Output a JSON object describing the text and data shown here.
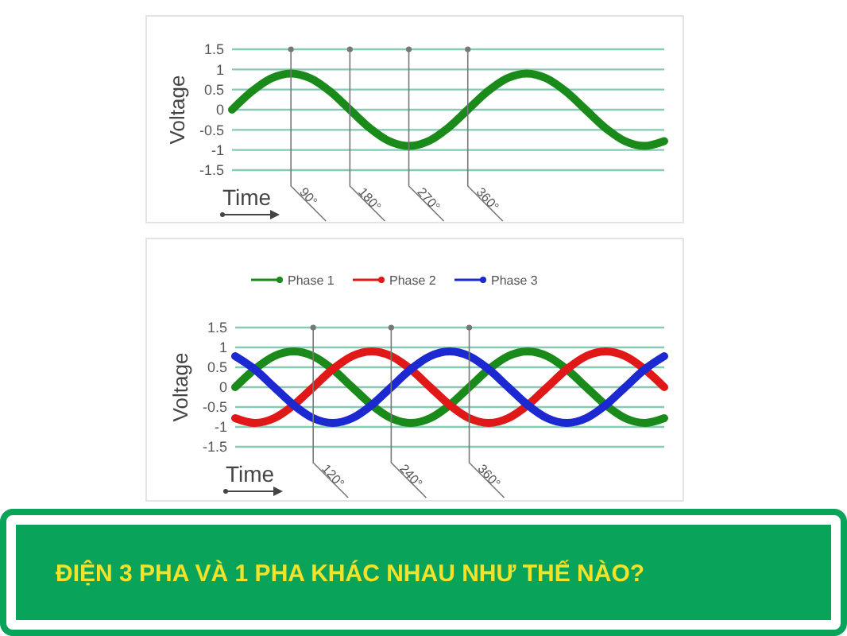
{
  "chart_data": [
    {
      "type": "line",
      "ylabel": "Voltage",
      "xlabel": "Time",
      "xlim": [
        0,
        660
      ],
      "ylim": [
        -1.5,
        1.5
      ],
      "yticks": [
        1.5,
        1,
        0.5,
        0,
        -0.5,
        -1,
        -1.5
      ],
      "grid": "y",
      "tick_labels": "y",
      "x": [
        0,
        30,
        60,
        90,
        120,
        150,
        180,
        210,
        240,
        270,
        300,
        330,
        360,
        390,
        420,
        450,
        480,
        510,
        540,
        570,
        600,
        630,
        660
      ],
      "series": [
        {
          "color": "#1a8a1a",
          "values": [
            0,
            0.45,
            0.78,
            0.9,
            0.78,
            0.45,
            0,
            -0.45,
            -0.78,
            -0.9,
            -0.78,
            -0.45,
            0,
            0.45,
            0.78,
            0.9,
            0.78,
            0.45,
            0,
            -0.45,
            -0.78,
            -0.9,
            -0.78
          ]
        }
      ],
      "ref_lines": [
        {
          "axis": "x",
          "value": 90,
          "label": "90°"
        },
        {
          "axis": "x",
          "value": 180,
          "label": "180°"
        },
        {
          "axis": "x",
          "value": 270,
          "label": "270°"
        },
        {
          "axis": "x",
          "value": 360,
          "label": "360°"
        }
      ]
    },
    {
      "type": "line",
      "ylabel": "Voltage",
      "xlabel": "Time",
      "xlim": [
        0,
        660
      ],
      "ylim": [
        -1.5,
        1.5
      ],
      "yticks": [
        1.5,
        1,
        0.5,
        0,
        -0.5,
        -1,
        -1.5
      ],
      "grid": "y",
      "tick_labels": "y",
      "legend": "top left",
      "x": [
        0,
        30,
        60,
        90,
        120,
        150,
        180,
        210,
        240,
        270,
        300,
        330,
        360,
        390,
        420,
        450,
        480,
        510,
        540,
        570,
        600,
        630,
        660
      ],
      "series": [
        {
          "name": "Phase 1",
          "color": "#1a8a1a",
          "values": [
            0,
            0.45,
            0.78,
            0.9,
            0.78,
            0.45,
            0,
            -0.45,
            -0.78,
            -0.9,
            -0.78,
            -0.45,
            0,
            0.45,
            0.78,
            0.9,
            0.78,
            0.45,
            0,
            -0.45,
            -0.78,
            -0.9,
            -0.78
          ]
        },
        {
          "name": "Phase 2",
          "color": "#e01818",
          "values": [
            -0.78,
            -0.9,
            -0.78,
            -0.45,
            0,
            0.45,
            0.78,
            0.9,
            0.78,
            0.45,
            0,
            -0.45,
            -0.78,
            -0.9,
            -0.78,
            -0.45,
            0,
            0.45,
            0.78,
            0.9,
            0.78,
            0.45,
            0
          ]
        },
        {
          "name": "Phase 3",
          "color": "#1c28d0",
          "values": [
            0.78,
            0.45,
            0,
            -0.45,
            -0.78,
            -0.9,
            -0.78,
            -0.45,
            0,
            0.45,
            0.78,
            0.9,
            0.78,
            0.45,
            0,
            -0.45,
            -0.78,
            -0.9,
            -0.78,
            -0.45,
            0,
            0.45,
            0.78
          ]
        }
      ],
      "ref_lines": [
        {
          "axis": "x",
          "value": 120,
          "label": "120°"
        },
        {
          "axis": "x",
          "value": 240,
          "label": "240°"
        },
        {
          "axis": "x",
          "value": 360,
          "label": "360°"
        }
      ]
    },
    {
      "type": "other",
      "title": "ĐIỆN 3 PHA VÀ 1 PHA KHÁC NHAU NHƯ THẾ NÀO?"
    }
  ]
}
